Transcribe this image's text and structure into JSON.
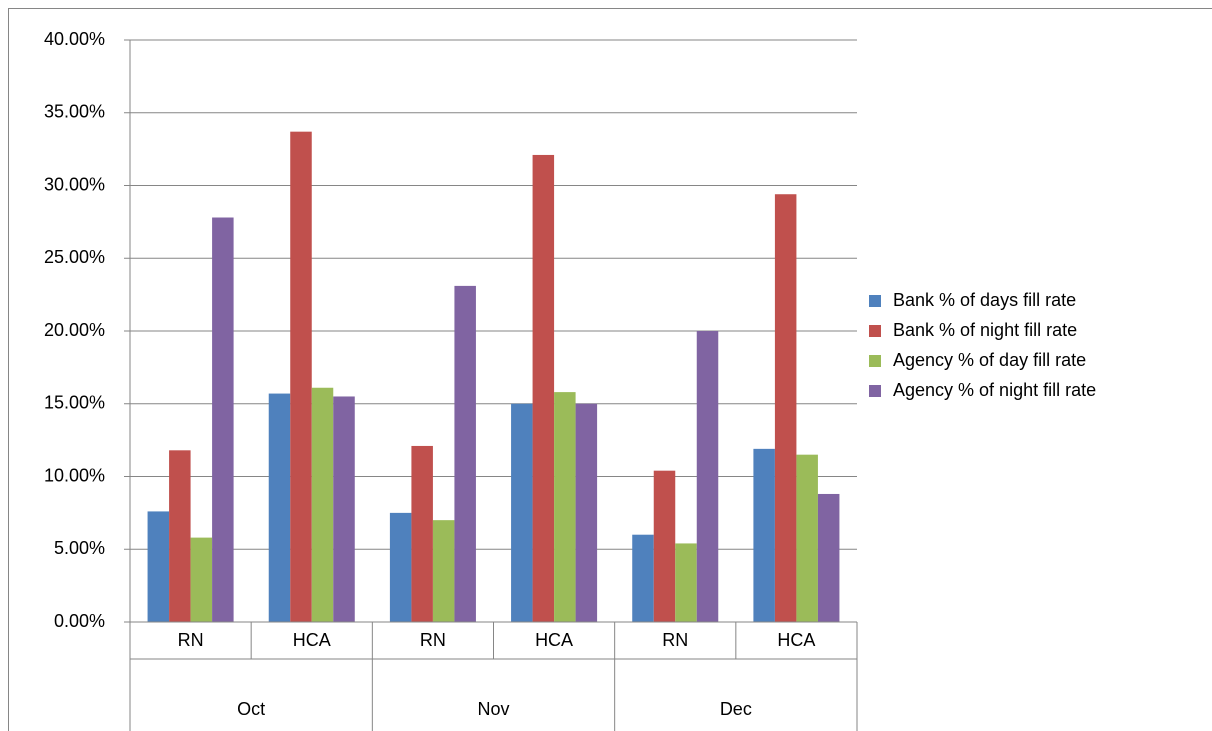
{
  "chart_data": {
    "type": "bar",
    "categories": [
      "RN",
      "HCA",
      "RN",
      "HCA",
      "RN",
      "HCA"
    ],
    "category_groups": [
      "Oct",
      "Nov",
      "Dec"
    ],
    "series": [
      {
        "name": "Bank % of days fill rate",
        "color": "#4f81bd",
        "values": [
          7.6,
          15.7,
          7.5,
          15.0,
          6.0,
          11.9
        ]
      },
      {
        "name": "Bank % of night fill rate",
        "color": "#c0504d",
        "values": [
          11.8,
          33.7,
          12.1,
          32.1,
          10.4,
          29.4
        ]
      },
      {
        "name": "Agency % of day fill rate",
        "color": "#9bbb59",
        "values": [
          5.8,
          16.1,
          7.0,
          15.8,
          5.4,
          11.5
        ]
      },
      {
        "name": "Agency % of night fill rate",
        "color": "#8064a2",
        "values": [
          27.8,
          15.5,
          23.1,
          15.0,
          20.0,
          8.8
        ]
      }
    ],
    "ylim": [
      0,
      40
    ],
    "yticks": [
      {
        "value": 0,
        "label": "0.00%"
      },
      {
        "value": 5,
        "label": "5.00%"
      },
      {
        "value": 10,
        "label": "10.00%"
      },
      {
        "value": 15,
        "label": "15.00%"
      },
      {
        "value": 20,
        "label": "20.00%"
      },
      {
        "value": 25,
        "label": "25.00%"
      },
      {
        "value": 30,
        "label": "30.00%"
      },
      {
        "value": 35,
        "label": "35.00%"
      },
      {
        "value": 40,
        "label": "40.00%"
      }
    ],
    "grid": true,
    "legend": "right"
  }
}
